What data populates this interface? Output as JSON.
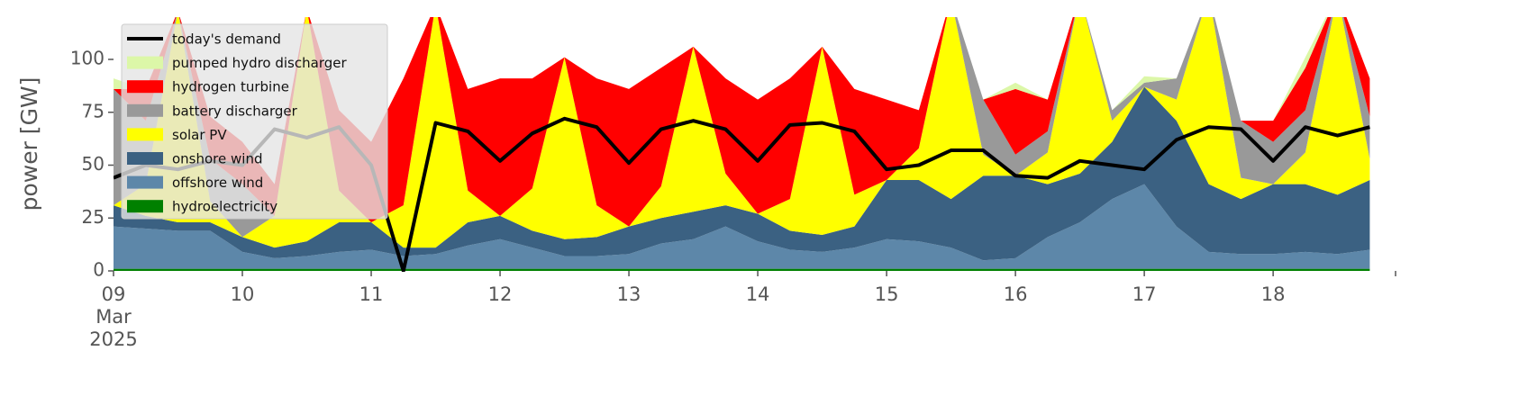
{
  "chart_data": {
    "type": "area",
    "ylabel": "power [GW]",
    "x": [
      9,
      9.25,
      9.5,
      9.75,
      10,
      10.25,
      10.5,
      10.75,
      11,
      11.25,
      11.5,
      11.75,
      12,
      12.25,
      12.5,
      12.75,
      13,
      13.25,
      13.5,
      13.75,
      14,
      14.25,
      14.5,
      14.75,
      15,
      15.25,
      15.5,
      15.75,
      16,
      16.25,
      16.5,
      16.75,
      17,
      17.25,
      17.5,
      17.75,
      18,
      18.25,
      18.5,
      18.75
    ],
    "xlim": [
      9,
      18.95
    ],
    "xticks": [
      {
        "value": 9,
        "label": "09\nMar\n2025"
      },
      10,
      11,
      12,
      13,
      14,
      15,
      16,
      17,
      18
    ],
    "ylim": [
      0,
      120
    ],
    "yticks": [
      0,
      25,
      50,
      75,
      100
    ],
    "legend": "upper left",
    "series": [
      {
        "name": "today's demand",
        "type": "line",
        "color": "#000000",
        "values": [
          44,
          50,
          48,
          52,
          50,
          67,
          63,
          68,
          50,
          0,
          70,
          66,
          52,
          65,
          72,
          68,
          51,
          67,
          71,
          67,
          52,
          69,
          70,
          66,
          48,
          50,
          57,
          57,
          45,
          44,
          52,
          50,
          48,
          62,
          68,
          67,
          52,
          68,
          64,
          68
        ]
      },
      {
        "name": "pumped hydro discharger",
        "type": "area",
        "color": "#dcf7a8",
        "values": [
          5,
          0,
          0,
          0,
          0,
          0,
          0,
          0,
          0,
          0,
          0,
          0,
          0,
          0,
          0,
          0,
          0,
          0,
          0,
          0,
          0,
          0,
          0,
          0,
          0,
          0,
          0,
          0,
          3,
          0,
          0,
          0,
          3,
          0,
          0,
          0,
          0,
          5,
          0,
          0
        ]
      },
      {
        "name": "hydrogen turbine",
        "type": "area",
        "color": "#ff0000",
        "values": [
          0,
          15,
          0,
          20,
          20,
          15,
          0,
          38,
          38,
          60,
          0,
          48,
          65,
          52,
          0,
          60,
          65,
          56,
          0,
          45,
          54,
          57,
          0,
          50,
          38,
          18,
          0,
          0,
          31,
          15,
          0,
          0,
          0,
          0,
          0,
          0,
          10,
          20,
          0,
          18
        ]
      },
      {
        "name": "battery discharger",
        "type": "area",
        "color": "#999999",
        "values": [
          55,
          30,
          0,
          20,
          25,
          0,
          0,
          0,
          0,
          0,
          0,
          0,
          0,
          0,
          0,
          0,
          0,
          0,
          0,
          0,
          0,
          0,
          0,
          0,
          0,
          0,
          0,
          26,
          10,
          10,
          0,
          5,
          2,
          10,
          0,
          27,
          20,
          20,
          0,
          20
        ]
      },
      {
        "name": "solar PV",
        "type": "area",
        "color": "#ffff00",
        "values": [
          0,
          15,
          100,
          10,
          0,
          15,
          110,
          15,
          0,
          20,
          115,
          15,
          0,
          20,
          86,
          15,
          0,
          15,
          78,
          15,
          0,
          15,
          89,
          15,
          0,
          15,
          95,
          10,
          0,
          15,
          85,
          10,
          0,
          10,
          90,
          10,
          0,
          15,
          95,
          10
        ]
      },
      {
        "name": "onshore wind",
        "type": "area",
        "color": "#3b6182",
        "values": [
          10,
          6,
          4,
          4,
          7,
          5,
          7,
          14,
          13,
          4,
          3,
          11,
          11,
          8,
          8,
          9,
          13,
          12,
          13,
          10,
          13,
          9,
          8,
          10,
          28,
          29,
          23,
          40,
          39,
          25,
          23,
          27,
          46,
          50,
          32,
          26,
          33,
          32,
          28,
          33
        ]
      },
      {
        "name": "offshore wind",
        "type": "area",
        "color": "#5d87a9",
        "values": [
          20,
          19,
          18,
          18,
          8,
          5,
          6,
          8,
          9,
          6,
          7,
          11,
          14,
          10,
          6,
          6,
          7,
          12,
          14,
          20,
          13,
          9,
          8,
          10,
          14,
          13,
          10,
          4,
          5,
          15,
          22,
          33,
          40,
          20,
          8,
          7,
          7,
          8,
          7,
          9
        ]
      },
      {
        "name": "hydroelectricity",
        "type": "area",
        "color": "#008000",
        "values": [
          1,
          1,
          1,
          1,
          1,
          1,
          1,
          1,
          1,
          1,
          1,
          1,
          1,
          1,
          1,
          1,
          1,
          1,
          1,
          1,
          1,
          1,
          1,
          1,
          1,
          1,
          1,
          1,
          1,
          1,
          1,
          1,
          1,
          1,
          1,
          1,
          1,
          1,
          1,
          1
        ]
      }
    ]
  }
}
